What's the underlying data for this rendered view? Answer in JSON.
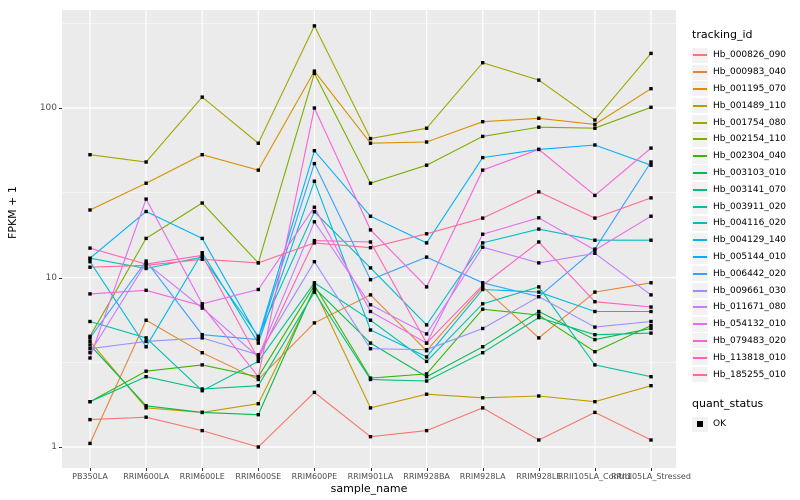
{
  "colors": {
    "panel_background": "#EBEBEB",
    "grid_line": "#FFFFFF",
    "axis_text": "#4D4D4D",
    "axis_title": "#000000",
    "point": "#000000",
    "legend_key_background": "#F2F2F2"
  },
  "chart_data": {
    "type": "line",
    "title": "",
    "xlabel": "sample_name",
    "ylabel": "FPKM + 1",
    "y_scale": "log10",
    "y_ticks": [
      1,
      10,
      100
    ],
    "y_minor_ticks": [
      3.162,
      31.62,
      316.2
    ],
    "ylim": [
      0.75,
      380
    ],
    "grid": "white major and minor gridlines on grey panel",
    "legend_position": "right",
    "legend_title": "tracking_id",
    "point_shape": "small filled black square",
    "x_categories": [
      "PB350LA",
      "RRIM600LA",
      "RRIM600LE",
      "RRIM600SE",
      "RRIM600PE",
      "RRIM901LA",
      "RRIM928BA",
      "RRIM928LA",
      "RRIM928LE",
      "RRII105LA_Control",
      "RRII105LA_Stressed"
    ],
    "series": [
      {
        "name": "Hb_000826_090",
        "color": "#F8766D",
        "values": [
          1.45,
          1.5,
          1.25,
          1.0,
          2.1,
          1.15,
          1.25,
          1.7,
          1.1,
          1.6,
          1.1
        ]
      },
      {
        "name": "Hb_000983_040",
        "color": "#EA8331",
        "values": [
          1.05,
          5.6,
          3.6,
          2.5,
          5.4,
          7.9,
          3.7,
          8.8,
          4.4,
          8.2,
          9.3
        ]
      },
      {
        "name": "Hb_001195_070",
        "color": "#D89000",
        "values": [
          25,
          36,
          53,
          43,
          165,
          62,
          63,
          83,
          87,
          80,
          130
        ]
      },
      {
        "name": "Hb_001489_110",
        "color": "#C09B00",
        "values": [
          4.2,
          1.7,
          1.6,
          1.8,
          8.5,
          1.7,
          2.05,
          1.95,
          2.0,
          1.85,
          2.3
        ]
      },
      {
        "name": "Hb_001754_080",
        "color": "#A3A500",
        "values": [
          53,
          48,
          116,
          62,
          305,
          66,
          76,
          185,
          146,
          85,
          210
        ]
      },
      {
        "name": "Hb_002154_110",
        "color": "#7CAE00",
        "values": [
          4.5,
          17,
          27.5,
          12.2,
          160,
          36,
          46,
          68,
          77,
          76,
          101
        ]
      },
      {
        "name": "Hb_002304_040",
        "color": "#39B600",
        "values": [
          1.85,
          2.8,
          3.05,
          2.6,
          9.0,
          2.55,
          2.7,
          6.5,
          6.0,
          3.65,
          5.2
        ]
      },
      {
        "name": "Hb_003103_010",
        "color": "#00BB4E",
        "values": [
          4.0,
          1.75,
          1.6,
          1.55,
          8.7,
          4.1,
          2.6,
          3.9,
          6.3,
          4.3,
          5.0
        ]
      },
      {
        "name": "Hb_003141_070",
        "color": "#00BF7D",
        "values": [
          1.85,
          2.6,
          2.2,
          2.3,
          8.2,
          2.5,
          2.45,
          3.6,
          5.8,
          4.6,
          4.7
        ]
      },
      {
        "name": "Hb_003911_020",
        "color": "#00C1A3",
        "values": [
          5.5,
          4.4,
          2.15,
          3.2,
          9.3,
          5.6,
          3.2,
          7.0,
          8.8,
          3.05,
          2.6
        ]
      },
      {
        "name": "Hb_004116_020",
        "color": "#00BFC4",
        "values": [
          13.0,
          11.3,
          13.2,
          4.5,
          24.4,
          11.4,
          5.25,
          16,
          19.3,
          16.6,
          16.6
        ]
      },
      {
        "name": "Hb_004129_140",
        "color": "#00BAE0",
        "values": [
          12.4,
          3.9,
          14,
          4.1,
          37,
          4.9,
          3.4,
          8.5,
          8.2,
          6.3,
          6.3
        ]
      },
      {
        "name": "Hb_005144_010",
        "color": "#00B0F6",
        "values": [
          13.0,
          24.5,
          17,
          4.4,
          56,
          23,
          16,
          51,
          57,
          60.5,
          46
        ]
      },
      {
        "name": "Hb_006442_020",
        "color": "#35A2FF",
        "values": [
          4.4,
          12.5,
          4.6,
          4.3,
          47,
          9.7,
          13.2,
          9.3,
          7.7,
          14.7,
          48
        ]
      },
      {
        "name": "Hb_009661_030",
        "color": "#9590FF",
        "values": [
          3.8,
          4.2,
          4.4,
          3.5,
          12.4,
          3.8,
          3.75,
          5.0,
          7.7,
          5.1,
          5.5
        ]
      },
      {
        "name": "Hb_011671_080",
        "color": "#C77CFF",
        "values": [
          3.6,
          12.2,
          6.6,
          3.4,
          21.3,
          6.9,
          4.65,
          15.1,
          12.2,
          13.9,
          7.9
        ]
      },
      {
        "name": "Hb_054132_010",
        "color": "#E76BF3",
        "values": [
          3.35,
          29,
          7.0,
          8.5,
          26,
          6.3,
          4.1,
          18,
          22.5,
          14.5,
          23
        ]
      },
      {
        "name": "Hb_079483_020",
        "color": "#FA62DB",
        "values": [
          8.0,
          8.4,
          6.8,
          2.6,
          100,
          19.1,
          8.8,
          43,
          57,
          30.5,
          58
        ]
      },
      {
        "name": "Hb_113818_010",
        "color": "#FF62BC",
        "values": [
          14.9,
          12.0,
          13.5,
          3.3,
          16.5,
          16.2,
          4.1,
          9.0,
          16.2,
          7.2,
          6.7
        ]
      },
      {
        "name": "Hb_185255_010",
        "color": "#FF6A98",
        "values": [
          11.5,
          11.8,
          12.8,
          12.2,
          16.0,
          15.0,
          18.1,
          22.4,
          32,
          22.4,
          29.5
        ]
      }
    ],
    "quant_status": {
      "title": "quant_status",
      "entries": [
        {
          "label": "OK",
          "marker": "black-square"
        }
      ]
    }
  }
}
